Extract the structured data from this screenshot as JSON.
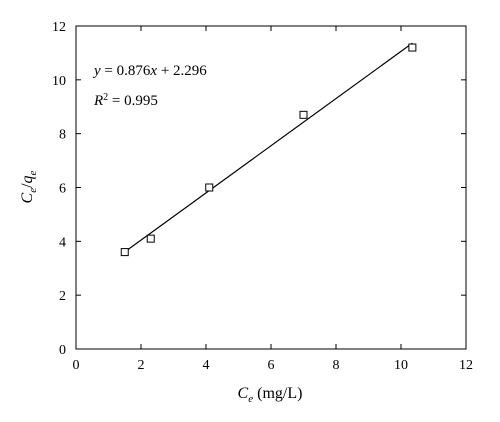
{
  "chart_data": {
    "type": "scatter",
    "x_label": {
      "main": "C",
      "sub": "e",
      "unit": " (mg/L)"
    },
    "y_label": {
      "main1": "C",
      "sub1": "e",
      "sep": "/",
      "main2": "q",
      "sub2": "e"
    },
    "xlim": [
      0,
      12
    ],
    "ylim": [
      0,
      12
    ],
    "x_ticks": [
      "0",
      "2",
      "4",
      "6",
      "8",
      "10",
      "12"
    ],
    "y_ticks": [
      "0",
      "2",
      "4",
      "6",
      "8",
      "10",
      "12"
    ],
    "grid": false,
    "legend": "none",
    "points": [
      {
        "x": 1.5,
        "y": 3.6
      },
      {
        "x": 2.3,
        "y": 4.1
      },
      {
        "x": 4.1,
        "y": 6.0
      },
      {
        "x": 7.0,
        "y": 8.7
      },
      {
        "x": 10.35,
        "y": 11.2
      }
    ],
    "fit_line": {
      "slope": 0.876,
      "intercept": 2.296,
      "x_range": [
        1.5,
        10.35
      ]
    },
    "annotations": {
      "equation": {
        "y_var": "y",
        "eq_text": " = 0.876",
        "x_var": "x",
        "rest": " + 2.296"
      },
      "r2": {
        "var": "R",
        "sup": "2",
        "rest": " = 0.995"
      }
    }
  }
}
